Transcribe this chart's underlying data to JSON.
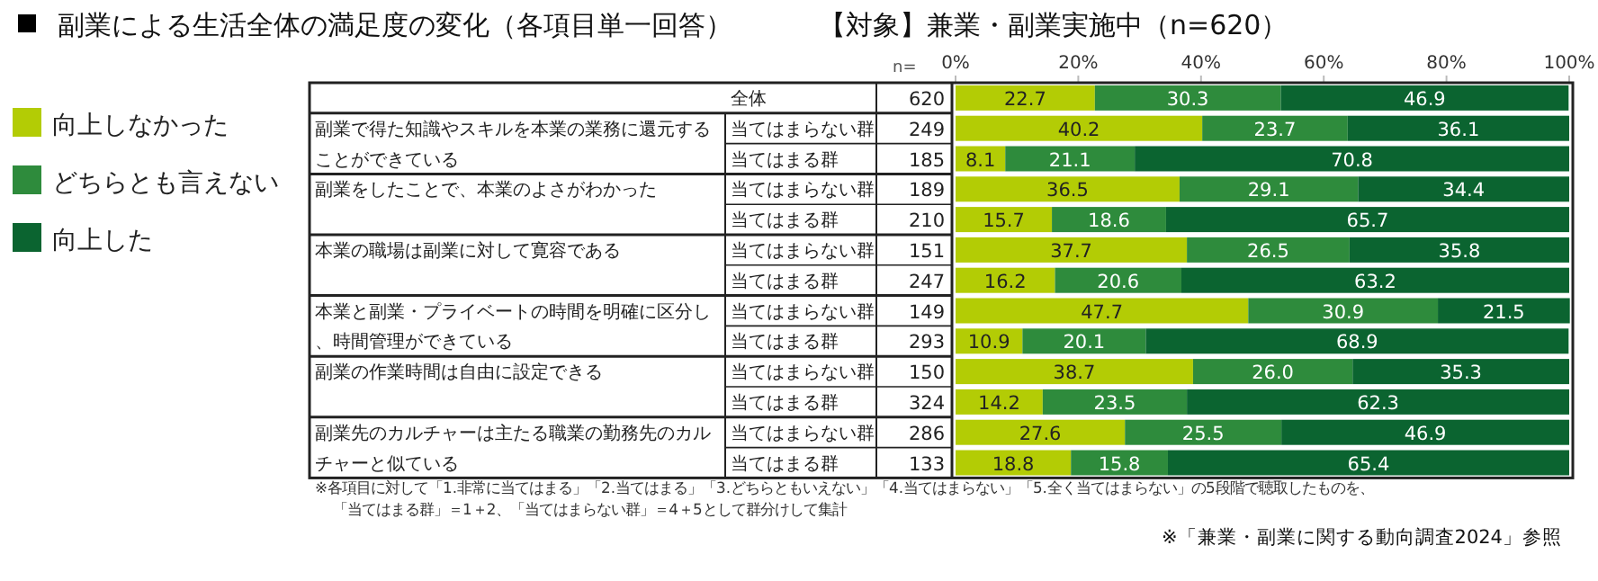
{
  "chart_data": {
    "type": "bar",
    "orientation": "horizontal",
    "stacked": true,
    "legend": "left",
    "title": "副業による生活全体の満足度の変化（各項目単一回答）",
    "subtitle": "【対象】兼業・副業実施中（n=620）",
    "categories": [
      "全体",
      "当てはまらない群",
      "当てはまる群",
      "当てはまらない群",
      "当てはまる群",
      "当てはまらない群",
      "当てはまる群",
      "当てはまらない群",
      "当てはまる群",
      "当てはまらない群",
      "当てはまる群",
      "当てはまらない群",
      "当てはまる群"
    ],
    "xlim": [
      0,
      100
    ],
    "xticks": [
      {
        "value": 0,
        "label": "0%"
      },
      {
        "value": 20,
        "label": "20%"
      },
      {
        "value": 40,
        "label": "40%"
      },
      {
        "value": 60,
        "label": "60%"
      },
      {
        "value": 80,
        "label": "80%"
      },
      {
        "value": 100,
        "label": "100%"
      }
    ],
    "series": [
      {
        "name": "向上しなかった",
        "color": "#b3cc05",
        "values": [
          22.7,
          40.2,
          8.1,
          36.5,
          15.7,
          37.7,
          16.2,
          47.7,
          10.9,
          38.7,
          14.2,
          27.6,
          18.8
        ],
        "value_labels": [
          "22.7",
          "40.2",
          "8.1",
          "36.5",
          "15.7",
          "37.7",
          "16.2",
          "47.7",
          "10.9",
          "38.7",
          "14.2",
          "27.6",
          "18.8"
        ]
      },
      {
        "name": "どちらとも言えない",
        "color": "#2e8b3c",
        "values": [
          30.3,
          23.7,
          21.1,
          29.1,
          18.6,
          26.5,
          20.6,
          30.9,
          20.1,
          26.0,
          23.5,
          25.5,
          15.8
        ],
        "value_labels": [
          "30.3",
          "23.7",
          "21.1",
          "29.1",
          "18.6",
          "26.5",
          "20.6",
          "30.9",
          "20.1",
          "26.0",
          "23.5",
          "25.5",
          "15.8"
        ]
      },
      {
        "name": "向上した",
        "color": "#0b6430",
        "values": [
          46.9,
          36.1,
          70.8,
          34.4,
          65.7,
          35.8,
          63.2,
          21.5,
          68.9,
          35.3,
          62.3,
          46.9,
          65.4
        ],
        "value_labels": [
          "46.9",
          "36.1",
          "70.8",
          "34.4",
          "65.7",
          "35.8",
          "63.2",
          "21.5",
          "68.9",
          "35.3",
          "62.3",
          "46.9",
          "65.4"
        ]
      }
    ],
    "annotations": [
      "n=",
      "620",
      "249",
      "185",
      "189",
      "210",
      "151",
      "247",
      "149",
      "293",
      "150",
      "324",
      "286",
      "133",
      "副業で得た知識やスキルを本業の業務に還元することができている",
      "副業をしたことで、本業のよさがわかった",
      "本業の職場は副業に対して寛容である",
      "本業と副業・プライベートの時間を明確に区分し、時間管理ができている",
      "副業の作業時間は自由に設定できる",
      "副業先のカルチャーは主たる職業の勤務先のカルチャーと似ている",
      "※各項目に対して「1.非常に当てはまる」「2.当てはまる」「3.どちらともいえない」「4.当てはまらない」「5.全く当てはまらない」の5段階で聴取したものを、",
      "「当てはまる群」＝1＋2、「当てはまらない群」＝4＋5として群分けして集計",
      "※「兼業・副業に関する動向調査2024」参照"
    ]
  }
}
